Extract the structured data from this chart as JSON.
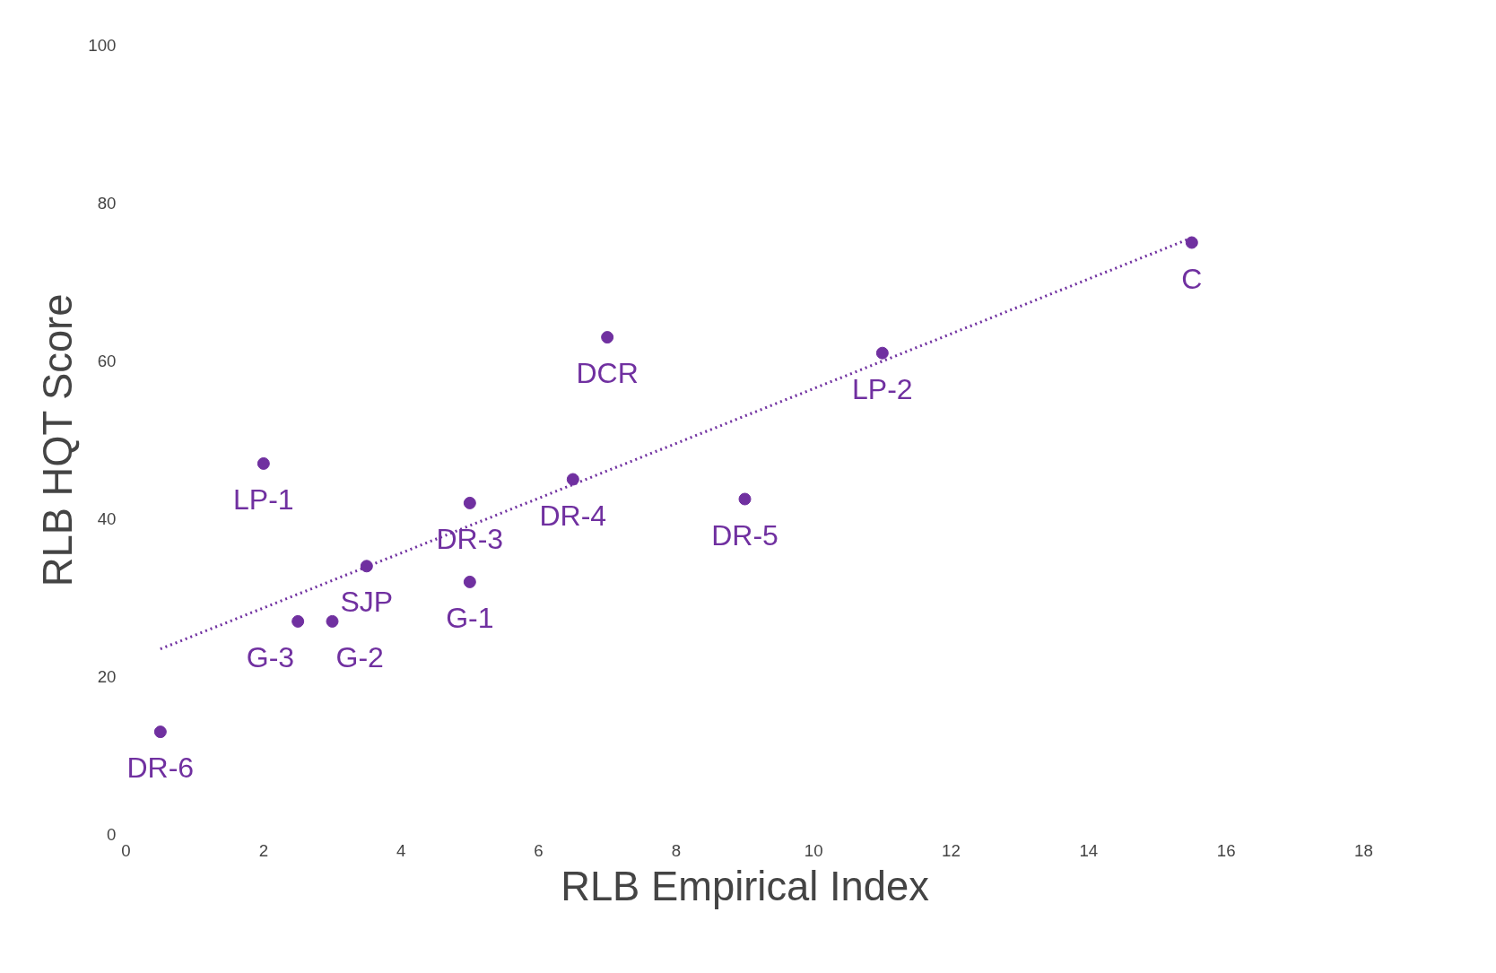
{
  "chart_data": {
    "type": "scatter",
    "xlabel": "RLB Empirical Index",
    "ylabel": "RLB HQT Score",
    "x": [
      0.5,
      2,
      2.5,
      3,
      3.5,
      5,
      5,
      6.5,
      7,
      9,
      11,
      15.5
    ],
    "series": [
      {
        "color": "#7030a0",
        "values": [
          13,
          47,
          27,
          27,
          34,
          42,
          32,
          45,
          63,
          42.5,
          61,
          75
        ]
      },
      {
        "type": "line",
        "color": "#7030a0",
        "line_style": "dotted",
        "marker": "none",
        "x": [
          0.5,
          15.5
        ],
        "values": [
          23.5,
          75.6
        ]
      }
    ],
    "annotations": [
      {
        "text": "DR-6",
        "x": 0.5,
        "y": 13
      },
      {
        "text": "LP-1",
        "x": 2,
        "y": 47
      },
      {
        "text": "G-3",
        "x": 2.5,
        "y": 27
      },
      {
        "text": "G-2",
        "x": 3,
        "y": 27
      },
      {
        "text": "SJP",
        "x": 3.5,
        "y": 34
      },
      {
        "text": "DR-3",
        "x": 5,
        "y": 42
      },
      {
        "text": "G-1",
        "x": 5,
        "y": 32
      },
      {
        "text": "DR-4",
        "x": 6.5,
        "y": 45
      },
      {
        "text": "DCR",
        "x": 7,
        "y": 63
      },
      {
        "text": "DR-5",
        "x": 9,
        "y": 42.5
      },
      {
        "text": "LP-2",
        "x": 11,
        "y": 61
      },
      {
        "text": "C",
        "x": 15.5,
        "y": 75
      }
    ],
    "xlim": [
      0,
      18
    ],
    "ylim": [
      0,
      100
    ],
    "xticks": [
      0,
      2,
      4,
      6,
      8,
      10,
      12,
      14,
      16,
      18
    ],
    "yticks": [
      0,
      20,
      40,
      60,
      80,
      100
    ],
    "marker": "circle",
    "grid": false
  }
}
